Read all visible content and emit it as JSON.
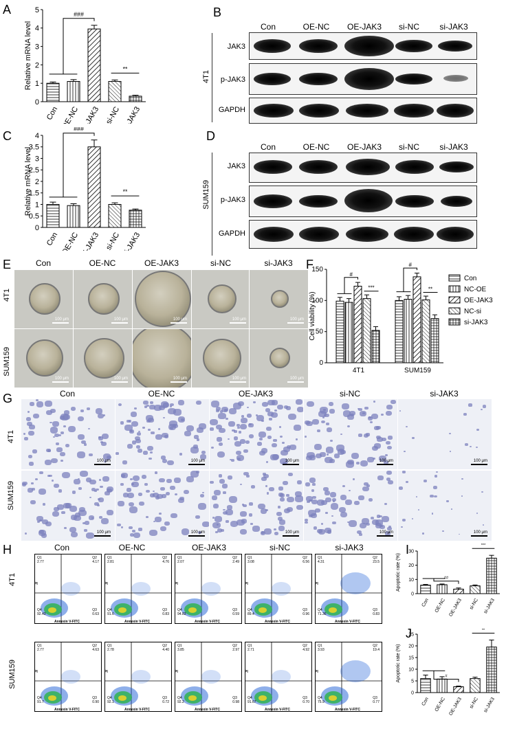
{
  "panels": {
    "A": "A",
    "B": "B",
    "C": "C",
    "D": "D",
    "E": "E",
    "F": "F",
    "G": "G",
    "H": "H",
    "I": "I",
    "J": "J"
  },
  "groups": [
    "Con",
    "OE-NC",
    "OE-JAK3",
    "si-NC",
    "si-JAK3"
  ],
  "blot_rows": [
    "JAK3",
    "p-JAK3",
    "GAPDH"
  ],
  "cell_lines": [
    "4T1",
    "SUM159"
  ],
  "scale_text": "100 μm",
  "chart_A": {
    "type": "bar",
    "ylabel": "Relative mRNA level",
    "categories": [
      "Con",
      "OE-NC",
      "OE-JAK3",
      "si-NC",
      "si-JAK3"
    ],
    "values": [
      1.0,
      1.1,
      3.95,
      1.1,
      0.3
    ],
    "errors": [
      0.07,
      0.1,
      0.2,
      0.08,
      0.05
    ],
    "ylim": [
      0,
      5
    ],
    "yticks": [
      "0",
      "1",
      "2",
      "3",
      "4",
      "5"
    ],
    "sig1": "###",
    "sig2": "**"
  },
  "chart_C": {
    "type": "bar",
    "ylabel": "Relative mRNA level",
    "categories": [
      "Con",
      "OE-NC",
      "OE-JAK3",
      "si-NC",
      "si-JAK3"
    ],
    "values": [
      1.0,
      0.95,
      3.5,
      1.0,
      0.75
    ],
    "errors": [
      0.1,
      0.08,
      0.3,
      0.07,
      0.05
    ],
    "ylim": [
      0,
      4
    ],
    "yticks": [
      "0",
      "0.5",
      "1",
      "1.5",
      "2",
      "2.5",
      "3",
      "3.5",
      "4"
    ],
    "sig1": "###",
    "sig2": "**"
  },
  "chart_F": {
    "type": "bar",
    "ylabel": "Cell viability (%)",
    "categories": [
      "4T1",
      "SUM159"
    ],
    "series": [
      {
        "name": "Con",
        "values": [
          99,
          100
        ]
      },
      {
        "name": "NC-OE",
        "values": [
          97,
          102
        ]
      },
      {
        "name": "OE-JAK3",
        "values": [
          123,
          138
        ]
      },
      {
        "name": "NC-si",
        "values": [
          103,
          101
        ]
      },
      {
        "name": "si-JAK3",
        "values": [
          52,
          71
        ]
      }
    ],
    "ylim": [
      0,
      150
    ],
    "yticks": [
      "0",
      "50",
      "100",
      "150"
    ],
    "sig": [
      "#",
      "***",
      "#",
      "**"
    ]
  },
  "chart_I": {
    "type": "bar",
    "ylabel": "Apoptotic rate (%)",
    "categories": [
      "Con",
      "OE-NC",
      "OE-JAK3",
      "si-NC",
      "si-JAK3"
    ],
    "values": [
      6,
      6.3,
      3.2,
      5.5,
      25
    ],
    "errors": [
      0.5,
      0.5,
      0.8,
      0.6,
      2
    ],
    "ylim": [
      0,
      30
    ],
    "yticks": [
      "0",
      "10",
      "20",
      "30"
    ],
    "sig1": "##",
    "sig2": "***"
  },
  "chart_J": {
    "type": "bar",
    "ylabel": "Apoptotic rate (%)",
    "categories": [
      "Con",
      "OE-NC",
      "OE-JAK3",
      "si-NC",
      "si-JAK3"
    ],
    "values": [
      6,
      5.8,
      2.5,
      6,
      19.5
    ],
    "errors": [
      1.5,
      1,
      0.3,
      0.6,
      3
    ],
    "ylim": [
      0,
      25
    ],
    "yticks": [
      "0",
      "5",
      "10",
      "15",
      "20",
      "25"
    ],
    "sig1": "#",
    "sig2": "**"
  },
  "flow": {
    "xlabel": "Annexin V-FITC",
    "ylabel": "PI",
    "4T1": [
      [
        "2.77",
        "4.17",
        "0.63",
        "92.43"
      ],
      [
        "2.81",
        "4.76",
        "0.83",
        "91.6"
      ],
      [
        "2.07",
        "2.49",
        "0.59",
        "94.83"
      ],
      [
        "3.08",
        "6.56",
        "0.96",
        "89.4"
      ],
      [
        "4.31",
        "23.5",
        "0.83",
        "71.36"
      ]
    ],
    "SUM159": [
      [
        "2.77",
        "4.63",
        "0.90",
        "91.7"
      ],
      [
        "2.78",
        "4.40",
        "0.72",
        "92.1"
      ],
      [
        "3.85",
        "2.97",
        "0.98",
        "92.2"
      ],
      [
        "2.71",
        "4.92",
        "0.70",
        "91.67"
      ],
      [
        "3.93",
        "19.4",
        "0.77",
        "75.9"
      ]
    ]
  }
}
